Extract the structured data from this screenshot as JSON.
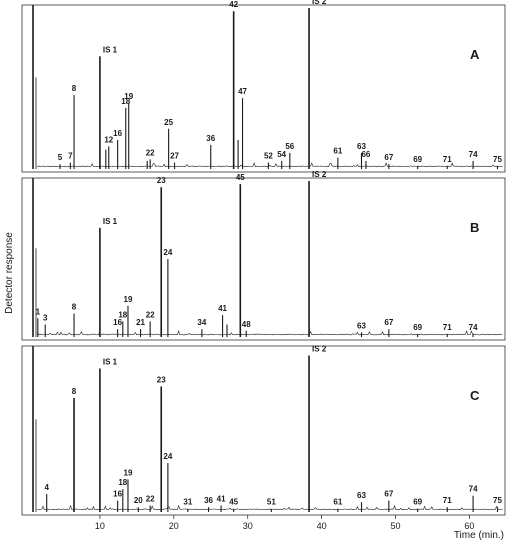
{
  "chart_data": [
    {
      "type": "line",
      "panel": "A",
      "baseline": 2,
      "peaks": [
        {
          "x": 4.6,
          "y": 3,
          "label": "5"
        },
        {
          "x": 6.0,
          "y": 4,
          "label": "7"
        },
        {
          "x": 6.5,
          "y": 46,
          "label": "8"
        },
        {
          "x": 10.0,
          "y": 70,
          "label": "IS 1"
        },
        {
          "x": 10.8,
          "y": 12,
          "label": ""
        },
        {
          "x": 11.2,
          "y": 14,
          "label": "12"
        },
        {
          "x": 12.4,
          "y": 18,
          "label": "16"
        },
        {
          "x": 13.5,
          "y": 38,
          "label": "18"
        },
        {
          "x": 13.9,
          "y": 41,
          "label": "19"
        },
        {
          "x": 16.4,
          "y": 5,
          "label": ""
        },
        {
          "x": 16.8,
          "y": 6,
          "label": "22"
        },
        {
          "x": 19.3,
          "y": 25,
          "label": "25"
        },
        {
          "x": 20.1,
          "y": 4,
          "label": "27"
        },
        {
          "x": 25.0,
          "y": 15,
          "label": "36"
        },
        {
          "x": 28.1,
          "y": 98,
          "label": "42"
        },
        {
          "x": 28.7,
          "y": 18,
          "label": ""
        },
        {
          "x": 29.3,
          "y": 44,
          "label": "47"
        },
        {
          "x": 32.8,
          "y": 4,
          "label": "52"
        },
        {
          "x": 34.6,
          "y": 5,
          "label": "54"
        },
        {
          "x": 35.7,
          "y": 10,
          "label": "56"
        },
        {
          "x": 38.3,
          "y": 100,
          "label": "IS 2"
        },
        {
          "x": 42.2,
          "y": 7,
          "label": "61"
        },
        {
          "x": 45.4,
          "y": 10,
          "label": "63"
        },
        {
          "x": 46.0,
          "y": 5,
          "label": "66"
        },
        {
          "x": 49.1,
          "y": 3,
          "label": "67"
        },
        {
          "x": 53.0,
          "y": 2,
          "label": "69"
        },
        {
          "x": 57.0,
          "y": 2,
          "label": "71"
        },
        {
          "x": 60.5,
          "y": 5,
          "label": "74"
        },
        {
          "x": 63.8,
          "y": 2,
          "label": "75"
        }
      ]
    },
    {
      "type": "line",
      "panel": "B",
      "baseline": 2,
      "peaks": [
        {
          "x": 1.6,
          "y": 12,
          "label": "1"
        },
        {
          "x": 2.6,
          "y": 8,
          "label": "3"
        },
        {
          "x": 6.5,
          "y": 15,
          "label": "8"
        },
        {
          "x": 10.0,
          "y": 70,
          "label": "IS 1"
        },
        {
          "x": 12.4,
          "y": 5,
          "label": "16"
        },
        {
          "x": 13.1,
          "y": 10,
          "label": "18"
        },
        {
          "x": 13.8,
          "y": 20,
          "label": "19"
        },
        {
          "x": 15.5,
          "y": 5,
          "label": "21"
        },
        {
          "x": 16.8,
          "y": 10,
          "label": "22"
        },
        {
          "x": 18.3,
          "y": 96,
          "label": "23"
        },
        {
          "x": 19.2,
          "y": 50,
          "label": "24"
        },
        {
          "x": 23.8,
          "y": 5,
          "label": "34"
        },
        {
          "x": 26.6,
          "y": 14,
          "label": "41"
        },
        {
          "x": 27.2,
          "y": 8,
          "label": ""
        },
        {
          "x": 29.0,
          "y": 98,
          "label": "45"
        },
        {
          "x": 29.8,
          "y": 4,
          "label": "48"
        },
        {
          "x": 38.3,
          "y": 100,
          "label": "IS 2"
        },
        {
          "x": 45.4,
          "y": 3,
          "label": "63"
        },
        {
          "x": 49.1,
          "y": 5,
          "label": "67"
        },
        {
          "x": 53.0,
          "y": 2,
          "label": "69"
        },
        {
          "x": 57.0,
          "y": 2,
          "label": "71"
        },
        {
          "x": 60.5,
          "y": 2,
          "label": "74"
        }
      ]
    },
    {
      "type": "line",
      "panel": "C",
      "baseline": 2,
      "peaks": [
        {
          "x": 2.8,
          "y": 11,
          "label": "4"
        },
        {
          "x": 6.5,
          "y": 70,
          "label": "8"
        },
        {
          "x": 10.0,
          "y": 88,
          "label": "IS 1"
        },
        {
          "x": 12.4,
          "y": 7,
          "label": "16"
        },
        {
          "x": 13.1,
          "y": 14,
          "label": "18"
        },
        {
          "x": 13.8,
          "y": 20,
          "label": "19"
        },
        {
          "x": 15.2,
          "y": 3,
          "label": "20"
        },
        {
          "x": 16.8,
          "y": 4,
          "label": "22"
        },
        {
          "x": 18.3,
          "y": 77,
          "label": "23"
        },
        {
          "x": 19.2,
          "y": 30,
          "label": "24"
        },
        {
          "x": 21.9,
          "y": 2,
          "label": "31"
        },
        {
          "x": 24.7,
          "y": 3,
          "label": "36"
        },
        {
          "x": 26.4,
          "y": 4,
          "label": "41"
        },
        {
          "x": 28.1,
          "y": 2,
          "label": "45"
        },
        {
          "x": 33.2,
          "y": 2,
          "label": "51"
        },
        {
          "x": 38.3,
          "y": 96,
          "label": "IS 2"
        },
        {
          "x": 42.2,
          "y": 2,
          "label": "61"
        },
        {
          "x": 45.4,
          "y": 6,
          "label": "63"
        },
        {
          "x": 49.1,
          "y": 7,
          "label": "67"
        },
        {
          "x": 53.0,
          "y": 2,
          "label": "69"
        },
        {
          "x": 57.0,
          "y": 3,
          "label": "71"
        },
        {
          "x": 60.5,
          "y": 10,
          "label": "74"
        },
        {
          "x": 63.8,
          "y": 3,
          "label": "75"
        }
      ]
    }
  ],
  "axes": {
    "x_range": [
      0,
      65
    ],
    "x_ticks": [
      10,
      20,
      30,
      40,
      50,
      60
    ],
    "x_tick_labels": [
      "10",
      "20",
      "30",
      "40",
      "50",
      "60"
    ],
    "xlabel": "Time (min.)",
    "ylabel": "Detector response",
    "y_range": [
      0,
      100
    ],
    "grid": false
  },
  "colors": {
    "trace": "#1a1a1a",
    "frame": "#333333"
  }
}
